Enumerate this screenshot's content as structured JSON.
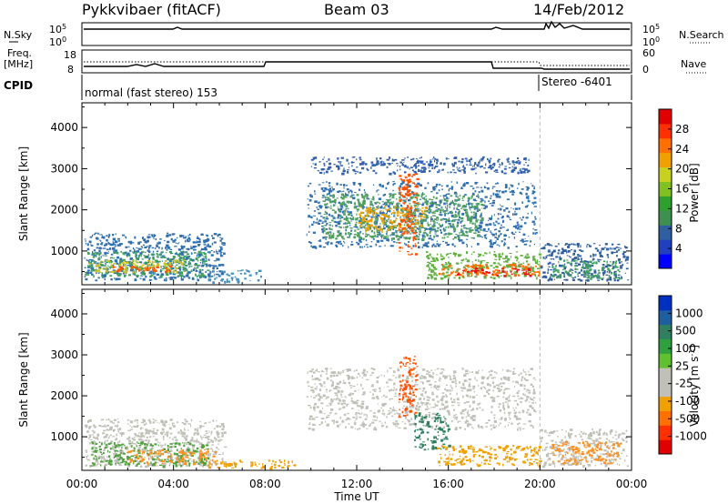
{
  "header": {
    "station": "Pykkvibaer (fitACF)",
    "beam": "Beam 03",
    "date": "14/Feb/2012"
  },
  "panels": {
    "nsky": {
      "label": "N.Sky",
      "right_label": "N.Search",
      "ticks": [
        "10^5",
        "10^0"
      ],
      "right_ticks": [
        "10^5",
        "10^0"
      ]
    },
    "freq": {
      "label_line1": "Freq.",
      "label_line2": "[MHz]",
      "ticks": [
        "18",
        "8"
      ],
      "right_label": "Nave",
      "right_ticks": [
        "60",
        "0"
      ]
    },
    "cpid": {
      "label": "CPID",
      "modes": [
        "normal (fast stereo) 153",
        "Stereo -6401"
      ]
    }
  },
  "chart_data": [
    {
      "type": "heatmap",
      "name": "power",
      "ylabel": "Slant Range [km]",
      "yticks": [
        1000,
        2000,
        3000,
        4000
      ],
      "ylim": [
        180,
        4600
      ],
      "xlim": [
        0,
        24
      ],
      "colorbar": {
        "label": "Power [dB]",
        "ticks": [
          "28",
          "24",
          "20",
          "16",
          "12",
          "8",
          "4"
        ],
        "colors": [
          "#0000ff",
          "#2040c0",
          "#2f5fa0",
          "#3f8f50",
          "#2fa02f",
          "#80c020",
          "#c8d020",
          "#f0a000",
          "#ff7000",
          "#ff3000",
          "#e00000"
        ]
      },
      "regions": [
        {
          "x": [
            0.1,
            6.2
          ],
          "y": [
            300,
            1450
          ],
          "c": "#2f6fb0"
        },
        {
          "x": [
            0.1,
            5.5
          ],
          "y": [
            400,
            1000
          ],
          "c": "#3f9f60"
        },
        {
          "x": [
            0.3,
            4.5
          ],
          "y": [
            500,
            800
          ],
          "c": "#c8c020"
        },
        {
          "x": [
            1.0,
            4.0
          ],
          "y": [
            520,
            650
          ],
          "c": "#ff5000"
        },
        {
          "x": [
            5.5,
            7.8
          ],
          "y": [
            250,
            550
          ],
          "c": "#4090c0"
        },
        {
          "x": [
            9.8,
            19.8
          ],
          "y": [
            1100,
            2700
          ],
          "c": "#3070b0"
        },
        {
          "x": [
            10.5,
            17.5
          ],
          "y": [
            1300,
            2400
          ],
          "c": "#50a060"
        },
        {
          "x": [
            12.0,
            15.0
          ],
          "y": [
            1500,
            2100
          ],
          "c": "#f0a000"
        },
        {
          "x": [
            13.8,
            14.6
          ],
          "y": [
            900,
            2900
          ],
          "c": "#ff5000"
        },
        {
          "x": [
            15.0,
            20.0
          ],
          "y": [
            350,
            1000
          ],
          "c": "#60b040"
        },
        {
          "x": [
            15.5,
            20.0
          ],
          "y": [
            400,
            700
          ],
          "c": "#ff7000"
        },
        {
          "x": [
            16.3,
            19.6
          ],
          "y": [
            420,
            600
          ],
          "c": "#ee1010"
        },
        {
          "x": [
            20.0,
            23.8
          ],
          "y": [
            300,
            1200
          ],
          "c": "#2f5fa0"
        },
        {
          "x": [
            20.5,
            23.5
          ],
          "y": [
            350,
            800
          ],
          "c": "#3f9f60"
        },
        {
          "x": [
            10.0,
            19.5
          ],
          "y": [
            2900,
            3300
          ],
          "c": "#3060b0"
        }
      ]
    },
    {
      "type": "heatmap",
      "name": "velocity",
      "ylabel": "Slant Range [km]",
      "yticks": [
        1000,
        2000,
        3000,
        4000
      ],
      "ylim": [
        180,
        4600
      ],
      "xlim": [
        0,
        24
      ],
      "colorbar": {
        "label": "Velocity [m s^-1]",
        "ticks": [
          "1000",
          "500",
          "100",
          "25",
          "-25",
          "-100",
          "-500",
          "-1000"
        ],
        "colors": [
          "#e00000",
          "#ff3000",
          "#ff7000",
          "#f0a000",
          "#c0c0b8",
          "#c0c0b8",
          "#60c030",
          "#2f9f40",
          "#2f7f60",
          "#1f5fa0",
          "#0030c0"
        ]
      },
      "regions": [
        {
          "x": [
            0.1,
            6.2
          ],
          "y": [
            300,
            1450
          ],
          "c": "#c0c0b8"
        },
        {
          "x": [
            0.3,
            5.5
          ],
          "y": [
            300,
            900
          ],
          "c": "#4fa040"
        },
        {
          "x": [
            2.0,
            5.8
          ],
          "y": [
            350,
            700
          ],
          "c": "#ff9020"
        },
        {
          "x": [
            5.5,
            9.5
          ],
          "y": [
            250,
            450
          ],
          "c": "#f0a000"
        },
        {
          "x": [
            9.8,
            19.8
          ],
          "y": [
            1200,
            2700
          ],
          "c": "#c0c0b8"
        },
        {
          "x": [
            13.8,
            14.6
          ],
          "y": [
            1500,
            3000
          ],
          "c": "#ff5000"
        },
        {
          "x": [
            14.5,
            16.0
          ],
          "y": [
            700,
            1600
          ],
          "c": "#2f7f60"
        },
        {
          "x": [
            15.5,
            20.0
          ],
          "y": [
            300,
            800
          ],
          "c": "#f0a000"
        },
        {
          "x": [
            20.0,
            23.8
          ],
          "y": [
            300,
            1200
          ],
          "c": "#c0c0b8"
        },
        {
          "x": [
            20.5,
            23.5
          ],
          "y": [
            350,
            900
          ],
          "c": "#ff9020"
        }
      ]
    }
  ],
  "xaxis": {
    "label": "Time UT",
    "ticks": [
      "00:00",
      "04:00",
      "08:00",
      "12:00",
      "16:00",
      "20:00",
      "00:00"
    ]
  }
}
